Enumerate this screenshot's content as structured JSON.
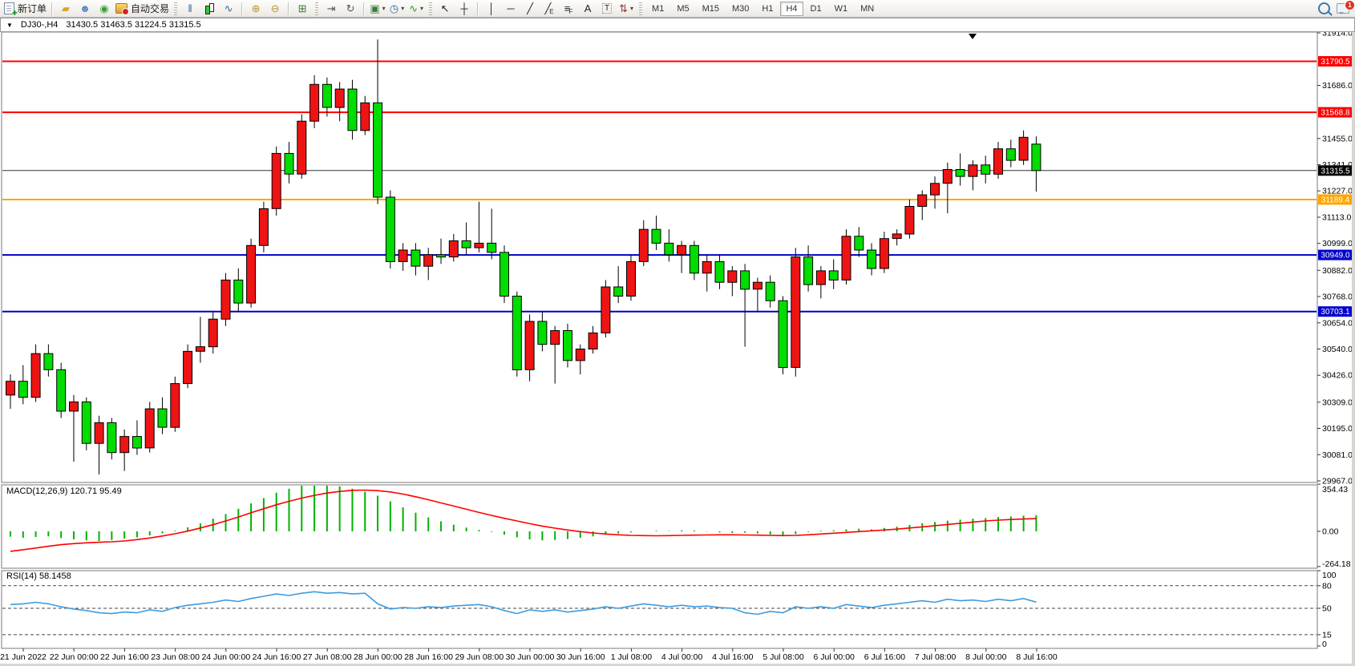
{
  "toolbar": {
    "notification_count": "1",
    "items": [
      {
        "k": "btn",
        "n": "new-order-button",
        "icon": "doc",
        "t": "新订单"
      },
      {
        "k": "sep"
      },
      {
        "k": "btn",
        "n": "layouts-button",
        "g": "▰",
        "c": "#d9a427"
      },
      {
        "k": "btn",
        "n": "profile-button",
        "g": "☻",
        "c": "#5b87c5"
      },
      {
        "k": "btn",
        "n": "broadcast-button",
        "g": "◉",
        "c": "#3a9a3a"
      },
      {
        "k": "btn",
        "n": "auto-trading-button",
        "icon": "auto",
        "t": "自动交易"
      },
      {
        "k": "grip"
      },
      {
        "k": "btn",
        "n": "bar-chart-button",
        "g": "‖",
        "c": "#33669a"
      },
      {
        "k": "btn",
        "n": "candlestick-chart-button",
        "icon": "candle"
      },
      {
        "k": "btn",
        "n": "line-chart-button",
        "g": "∿",
        "c": "#33669a"
      },
      {
        "k": "sep"
      },
      {
        "k": "btn",
        "n": "zoom-in-button",
        "g": "⊕",
        "c": "#b8952e"
      },
      {
        "k": "btn",
        "n": "zoom-out-button",
        "g": "⊖",
        "c": "#b8952e"
      },
      {
        "k": "sep"
      },
      {
        "k": "btn",
        "n": "tile-windows-button",
        "g": "⊞",
        "c": "#3a7a3a"
      },
      {
        "k": "grip"
      },
      {
        "k": "btn",
        "n": "chart-shift-button",
        "g": "⇥",
        "c": "#555555"
      },
      {
        "k": "btn",
        "n": "auto-scroll-button",
        "g": "↻",
        "c": "#555555"
      },
      {
        "k": "sep"
      },
      {
        "k": "btn",
        "n": "new-chart-button",
        "g": "▣",
        "c": "#3a7a3a",
        "caret": true
      },
      {
        "k": "btn",
        "n": "periods-button",
        "g": "◷",
        "c": "#2a6db5",
        "caret": true
      },
      {
        "k": "btn",
        "n": "indicators-button",
        "g": "∿",
        "c": "#2a9a2a",
        "caret": true
      },
      {
        "k": "grip"
      },
      {
        "k": "btn",
        "n": "cursor-button",
        "g": "↖",
        "c": "#222222"
      },
      {
        "k": "btn",
        "n": "crosshair-button",
        "g": "┼",
        "c": "#222222"
      },
      {
        "k": "sep"
      },
      {
        "k": "btn",
        "n": "vertical-line-button",
        "g": "│",
        "c": "#222222"
      },
      {
        "k": "btn",
        "n": "horizontal-line-button",
        "g": "─",
        "c": "#222222"
      },
      {
        "k": "btn",
        "n": "trendline-button",
        "g": "╱",
        "c": "#222222"
      },
      {
        "k": "btn",
        "n": "equidistant-channel-button",
        "g": "╱",
        "c": "#222222",
        "sub": "E"
      },
      {
        "k": "btn",
        "n": "fibonacci-button",
        "g": "≡",
        "c": "#222222",
        "sub": "F"
      },
      {
        "k": "btn",
        "n": "text-button",
        "g": "A",
        "c": "#222222"
      },
      {
        "k": "btn",
        "n": "text-label-button",
        "g": "T",
        "c": "#222222",
        "boxed": true
      },
      {
        "k": "btn",
        "n": "arrows-button",
        "g": "⇅",
        "c": "#993333",
        "caret": true
      },
      {
        "k": "grip"
      },
      {
        "k": "tf",
        "n": "timeframe-m1-button",
        "t": "M1"
      },
      {
        "k": "tf",
        "n": "timeframe-m5-button",
        "t": "M5"
      },
      {
        "k": "tf",
        "n": "timeframe-m15-button",
        "t": "M15"
      },
      {
        "k": "tf",
        "n": "timeframe-m30-button",
        "t": "M30"
      },
      {
        "k": "tf",
        "n": "timeframe-h1-button",
        "t": "H1"
      },
      {
        "k": "tf",
        "n": "timeframe-h4-button",
        "t": "H4",
        "active": true
      },
      {
        "k": "tf",
        "n": "timeframe-d1-button",
        "t": "D1"
      },
      {
        "k": "tf",
        "n": "timeframe-w1-button",
        "t": "W1"
      },
      {
        "k": "tf",
        "n": "timeframe-mn-button",
        "t": "MN"
      },
      {
        "k": "spacer"
      },
      {
        "k": "btn",
        "n": "search-button",
        "icon": "mag"
      },
      {
        "k": "btn",
        "n": "notifications-button",
        "icon": "chat",
        "badge": "1"
      }
    ]
  },
  "chart_window": {
    "title_symbol": "DJ30-,H4",
    "title_quote": "31430.5 31463.5 31224.5 31315.5"
  },
  "indicator_labels": {
    "macd": "MACD(12,26,9) 120.71 95.49",
    "rsi": "RSI(14) 58.1458"
  },
  "chart_data": {
    "type": "candlestick",
    "symbol": "DJ30-",
    "timeframe": "H4",
    "current_quote": {
      "open": 31430.5,
      "high": 31463.5,
      "low": 31224.5,
      "close": 31315.5
    },
    "colors": {
      "up": "#ee1414",
      "down": "#00dd00",
      "wick": "#000000",
      "macd_hist": "#00b400",
      "macd_signal": "#ff0000",
      "rsi_line": "#3d9be0",
      "current_price_line": "#333333"
    },
    "price_axis_ticks": [
      31914,
      31686,
      31455,
      31341,
      31227,
      31113,
      30999,
      30882,
      30768,
      30654,
      30540,
      30426,
      30309,
      30195,
      30081,
      29967
    ],
    "hlines": [
      {
        "price": 31790.5,
        "role": "resistance",
        "color": "#ff0000",
        "width": 2
      },
      {
        "price": 31568.8,
        "role": "resistance",
        "color": "#ff0000",
        "width": 2
      },
      {
        "price": 31315.5,
        "role": "current-price",
        "color": "#333333",
        "width": 1,
        "badge": "#000000"
      },
      {
        "price": 31189.4,
        "role": "pivot",
        "color": "#ffa500",
        "width": 2
      },
      {
        "price": 30949.0,
        "role": "support",
        "color": "#0000cc",
        "width": 2
      },
      {
        "price": 30703.1,
        "role": "support",
        "color": "#0000cc",
        "width": 2
      }
    ],
    "time_labels": [
      "21 Jun 2022",
      "22 Jun 00:00",
      "22 Jun 16:00",
      "23 Jun 08:00",
      "24 Jun 00:00",
      "24 Jun 16:00",
      "27 Jun 08:00",
      "28 Jun 00:00",
      "28 Jun 16:00",
      "29 Jun 08:00",
      "30 Jun 00:00",
      "30 Jun 16:00",
      "1 Jul 08:00",
      "4 Jul 00:00",
      "4 Jul 16:00",
      "5 Jul 08:00",
      "6 Jul 00:00",
      "6 Jul 16:00",
      "7 Jul 08:00",
      "8 Jul 00:00",
      "8 Jul 16:00"
    ],
    "ohlc": [
      [
        30340,
        30430,
        30280,
        30400
      ],
      [
        30400,
        30470,
        30300,
        30330
      ],
      [
        30330,
        30560,
        30310,
        30520
      ],
      [
        30520,
        30560,
        30420,
        30450
      ],
      [
        30450,
        30480,
        30240,
        30270
      ],
      [
        30270,
        30340,
        30050,
        30310
      ],
      [
        30310,
        30330,
        30100,
        30130
      ],
      [
        30130,
        30250,
        29995,
        30220
      ],
      [
        30220,
        30240,
        30060,
        30090
      ],
      [
        30090,
        30190,
        30010,
        30160
      ],
      [
        30160,
        30230,
        30080,
        30110
      ],
      [
        30110,
        30310,
        30090,
        30280
      ],
      [
        30280,
        30330,
        30170,
        30200
      ],
      [
        30200,
        30420,
        30180,
        30390
      ],
      [
        30390,
        30560,
        30370,
        30530
      ],
      [
        30530,
        30680,
        30480,
        30550
      ],
      [
        30550,
        30700,
        30520,
        30670
      ],
      [
        30670,
        30870,
        30640,
        30840
      ],
      [
        30840,
        30890,
        30700,
        30740
      ],
      [
        30740,
        31020,
        30720,
        30990
      ],
      [
        30990,
        31180,
        30960,
        31150
      ],
      [
        31150,
        31420,
        31120,
        31390
      ],
      [
        31390,
        31440,
        31260,
        31300
      ],
      [
        31300,
        31560,
        31280,
        31530
      ],
      [
        31530,
        31730,
        31500,
        31690
      ],
      [
        31690,
        31720,
        31550,
        31590
      ],
      [
        31590,
        31700,
        31530,
        31670
      ],
      [
        31670,
        31710,
        31450,
        31490
      ],
      [
        31490,
        31640,
        31470,
        31610
      ],
      [
        31610,
        31885,
        31170,
        31200
      ],
      [
        31200,
        31230,
        30890,
        30920
      ],
      [
        30920,
        31000,
        30880,
        30970
      ],
      [
        30970,
        31000,
        30860,
        30900
      ],
      [
        30900,
        30980,
        30840,
        30950
      ],
      [
        30950,
        31020,
        30910,
        30940
      ],
      [
        30940,
        31040,
        30920,
        31010
      ],
      [
        31010,
        31090,
        30950,
        30980
      ],
      [
        30980,
        31180,
        30960,
        31000
      ],
      [
        31000,
        31150,
        30930,
        30960
      ],
      [
        30960,
        30990,
        30740,
        30770
      ],
      [
        30770,
        30790,
        30420,
        30450
      ],
      [
        30450,
        30690,
        30400,
        30660
      ],
      [
        30660,
        30700,
        30530,
        30560
      ],
      [
        30560,
        30640,
        30390,
        30620
      ],
      [
        30620,
        30650,
        30460,
        30490
      ],
      [
        30490,
        30560,
        30430,
        30540
      ],
      [
        30540,
        30640,
        30520,
        30610
      ],
      [
        30610,
        30840,
        30590,
        30810
      ],
      [
        30810,
        30900,
        30740,
        30770
      ],
      [
        30770,
        30950,
        30750,
        30920
      ],
      [
        30920,
        31100,
        30900,
        31060
      ],
      [
        31060,
        31120,
        30970,
        31000
      ],
      [
        31000,
        31060,
        30920,
        30950
      ],
      [
        30950,
        31010,
        30870,
        30990
      ],
      [
        30990,
        31010,
        30840,
        30870
      ],
      [
        30870,
        30950,
        30790,
        30920
      ],
      [
        30920,
        30950,
        30800,
        30830
      ],
      [
        30830,
        30900,
        30770,
        30880
      ],
      [
        30880,
        30910,
        30550,
        30800
      ],
      [
        30800,
        30850,
        30700,
        30830
      ],
      [
        30830,
        30860,
        30720,
        30750
      ],
      [
        30750,
        30770,
        30430,
        30460
      ],
      [
        30460,
        30980,
        30420,
        30940
      ],
      [
        30940,
        30990,
        30790,
        30820
      ],
      [
        30820,
        30900,
        30760,
        30880
      ],
      [
        30880,
        30930,
        30800,
        30840
      ],
      [
        30840,
        31060,
        30820,
        31030
      ],
      [
        31030,
        31070,
        30940,
        30970
      ],
      [
        30970,
        31000,
        30860,
        30890
      ],
      [
        30890,
        31050,
        30870,
        31020
      ],
      [
        31020,
        31060,
        30990,
        31040
      ],
      [
        31040,
        31190,
        31020,
        31160
      ],
      [
        31160,
        31230,
        31100,
        31210
      ],
      [
        31210,
        31290,
        31150,
        31260
      ],
      [
        31260,
        31350,
        31130,
        31320
      ],
      [
        31320,
        31390,
        31250,
        31290
      ],
      [
        31290,
        31360,
        31230,
        31340
      ],
      [
        31340,
        31380,
        31260,
        31300
      ],
      [
        31300,
        31440,
        31280,
        31410
      ],
      [
        31410,
        31450,
        31330,
        31360
      ],
      [
        31360,
        31490,
        31340,
        31460
      ],
      [
        31430.5,
        31463.5,
        31224.5,
        31315.5
      ]
    ],
    "macd": {
      "label": "MACD(12,26,9)",
      "current_hist": 120.71,
      "current_signal": 95.49,
      "axis_ticks": [
        "354.43",
        "0.00",
        "-264.18"
      ],
      "hist": [
        -40,
        -48,
        -42,
        -38,
        -50,
        -60,
        -68,
        -72,
        -65,
        -55,
        -45,
        -30,
        -15,
        5,
        30,
        60,
        95,
        130,
        170,
        210,
        250,
        290,
        320,
        345,
        355,
        350,
        338,
        320,
        298,
        268,
        225,
        180,
        140,
        105,
        75,
        50,
        28,
        10,
        -5,
        -25,
        -45,
        -60,
        -68,
        -65,
        -58,
        -48,
        -38,
        -25,
        -15,
        -8,
        0,
        5,
        3,
        8,
        6,
        -2,
        -8,
        -12,
        -10,
        -15,
        -22,
        -35,
        -20,
        -5,
        5,
        8,
        15,
        20,
        15,
        25,
        35,
        48,
        62,
        70,
        80,
        88,
        95,
        100,
        108,
        112,
        118,
        120.71
      ],
      "signal": [
        -150,
        -138,
        -125,
        -112,
        -100,
        -92,
        -86,
        -82,
        -78,
        -72,
        -62,
        -50,
        -35,
        -18,
        2,
        25,
        50,
        78,
        108,
        140,
        170,
        200,
        226,
        250,
        270,
        288,
        300,
        308,
        310,
        306,
        296,
        280,
        260,
        238,
        214,
        190,
        166,
        142,
        120,
        98,
        78,
        58,
        40,
        24,
        10,
        -2,
        -12,
        -20,
        -26,
        -30,
        -32,
        -33,
        -32,
        -30,
        -28,
        -27,
        -26,
        -26,
        -27,
        -28,
        -30,
        -32,
        -30,
        -26,
        -20,
        -14,
        -8,
        -2,
        4,
        10,
        17,
        25,
        34,
        43,
        52,
        61,
        70,
        78,
        84,
        89,
        93,
        95.49
      ]
    },
    "rsi": {
      "label": "RSI(14)",
      "current": 58.1458,
      "axis_ticks": [
        100,
        80,
        50,
        15,
        0
      ],
      "levels": [
        80,
        50,
        15
      ],
      "values": [
        55,
        56,
        58,
        56,
        52,
        49,
        47,
        44,
        43,
        45,
        44,
        48,
        46,
        51,
        54,
        56,
        58,
        61,
        59,
        63,
        66,
        69,
        67,
        70,
        72,
        70,
        71,
        69,
        70,
        56,
        49,
        51,
        50,
        52,
        51,
        53,
        54,
        55,
        52,
        47,
        43,
        48,
        46,
        48,
        45,
        47,
        49,
        52,
        50,
        53,
        56,
        54,
        52,
        54,
        52,
        53,
        51,
        50,
        44,
        42,
        46,
        44,
        52,
        50,
        52,
        50,
        55,
        53,
        51,
        54,
        56,
        58,
        60,
        58,
        62,
        60,
        61,
        59,
        62,
        60,
        63,
        58.15
      ]
    }
  }
}
